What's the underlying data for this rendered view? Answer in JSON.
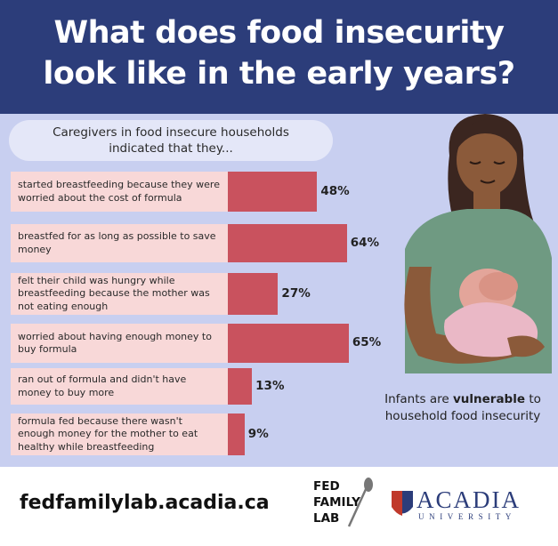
{
  "chart_data": {
    "type": "bar",
    "title": "What does food insecurity look like in the early years?",
    "subtitle": "Caregivers in food insecure households indicated that they...",
    "categories": [
      "started breastfeeding because they were worried about the cost of formula",
      "breastfed for as long as possible to save money",
      "felt their child was hungry while breastfeeding because the mother was not eating enough",
      "worried about having enough money to buy formula",
      "ran out of formula and didn't have money to buy more",
      "formula fed because there wasn't enough money for the mother to eat healthy while breastfeeding"
    ],
    "values": [
      48,
      64,
      27,
      65,
      13,
      9
    ],
    "value_labels": [
      "48%",
      "64%",
      "27%",
      "65%",
      "13%",
      "9%"
    ],
    "color": "#c9525e"
  },
  "illustration": {
    "caption": [
      "Infants are",
      "vulnerable",
      "to household food insecurity"
    ]
  },
  "footer": {
    "url": "fedfamilylab.acadia.ca",
    "lab_logo": [
      "FED",
      "FAMILY",
      "LAB"
    ],
    "university_logo": [
      "ACADIA",
      "UNIVERSITY"
    ]
  }
}
